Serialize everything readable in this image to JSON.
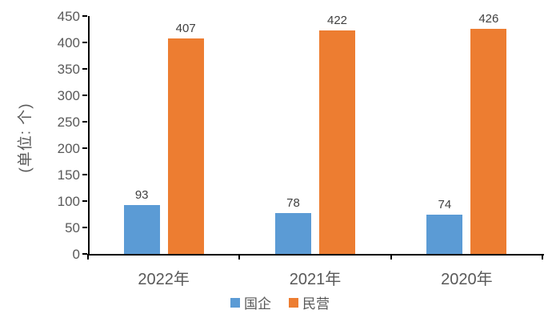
{
  "chart_data": {
    "type": "bar",
    "categories": [
      "2022年",
      "2021年",
      "2020年"
    ],
    "series": [
      {
        "name": "国企",
        "color": "#5B9BD5",
        "values": [
          93,
          78,
          74
        ]
      },
      {
        "name": "民营",
        "color": "#ED7D31",
        "values": [
          407,
          422,
          426
        ]
      }
    ],
    "title": "",
    "xlabel": "",
    "ylabel": "(单位: 个)",
    "ylim": [
      0,
      450
    ],
    "ytick_step": 50,
    "grid": false,
    "legend_position": "bottom",
    "data_labels": true,
    "axis_color": "#000000",
    "tick_label_color": "#595959",
    "data_label_color": "#404040"
  }
}
